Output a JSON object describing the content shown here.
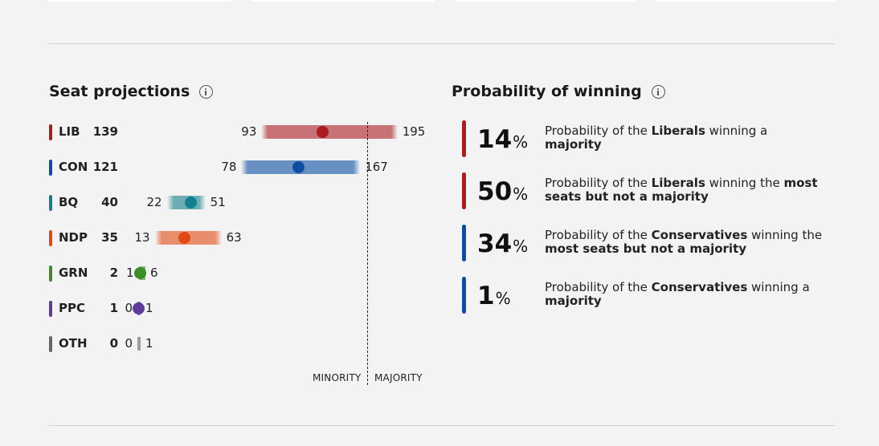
{
  "seat_projections": {
    "title": "Seat projections",
    "parties": [
      {
        "abbr": "LIB",
        "seats": "139",
        "low": "93",
        "high": "195",
        "color": "#a81c22"
      },
      {
        "abbr": "CON",
        "seats": "121",
        "low": "78",
        "high": "167",
        "color": "#0d4ea3"
      },
      {
        "abbr": "BQ",
        "seats": "40",
        "low": "22",
        "high": "51",
        "color": "#147f8e"
      },
      {
        "abbr": "NDP",
        "seats": "35",
        "low": "13",
        "high": "63",
        "color": "#e04a14"
      },
      {
        "abbr": "GRN",
        "seats": "2",
        "low": "1",
        "high": "6",
        "color": "#3b8d2a"
      },
      {
        "abbr": "PPC",
        "seats": "1",
        "low": "0",
        "high": "1",
        "color": "#5e3c99"
      },
      {
        "abbr": "OTH",
        "seats": "0",
        "low": "0",
        "high": "1",
        "color": "#666666"
      }
    ],
    "axis": {
      "minority_label": "MINORITY",
      "majority_label": "MAJORITY"
    }
  },
  "chart_data": {
    "type": "range",
    "title": "Seat projections",
    "categories": [
      "LIB",
      "CON",
      "BQ",
      "NDP",
      "GRN",
      "PPC",
      "OTH"
    ],
    "values": [
      139,
      121,
      40,
      35,
      2,
      1,
      0
    ],
    "low": [
      93,
      78,
      22,
      13,
      1,
      0,
      0
    ],
    "high": [
      195,
      167,
      51,
      63,
      6,
      1,
      1
    ],
    "majority_threshold": 172,
    "annotations": [
      "MINORITY",
      "MAJORITY"
    ]
  },
  "probability": {
    "title": "Probability of winning",
    "items": [
      {
        "value": "14",
        "pct_sign": "%",
        "color": "#a81c22",
        "text": [
          {
            "t": "Probability of the ",
            "b": false
          },
          {
            "t": "Liberals",
            "b": true
          },
          {
            "t": " winning a ",
            "b": false
          },
          {
            "t": "majority",
            "b": true
          }
        ]
      },
      {
        "value": "50",
        "pct_sign": "%",
        "color": "#a81c22",
        "text": [
          {
            "t": "Probability of the ",
            "b": false
          },
          {
            "t": "Liberals",
            "b": true
          },
          {
            "t": " winning the ",
            "b": false
          },
          {
            "t": "most seats but not a majority",
            "b": true
          }
        ]
      },
      {
        "value": "34",
        "pct_sign": "%",
        "color": "#0d4ea3",
        "text": [
          {
            "t": "Probability of the ",
            "b": false
          },
          {
            "t": "Conservatives",
            "b": true
          },
          {
            "t": " winning the ",
            "b": false
          },
          {
            "t": "most seats but not a majority",
            "b": true
          }
        ]
      },
      {
        "value": "1",
        "pct_sign": "%",
        "color": "#0d4ea3",
        "text": [
          {
            "t": "Probability of the ",
            "b": false
          },
          {
            "t": "Conservatives",
            "b": true
          },
          {
            "t": " winning a ",
            "b": false
          },
          {
            "t": "majority",
            "b": true
          }
        ]
      }
    ]
  }
}
